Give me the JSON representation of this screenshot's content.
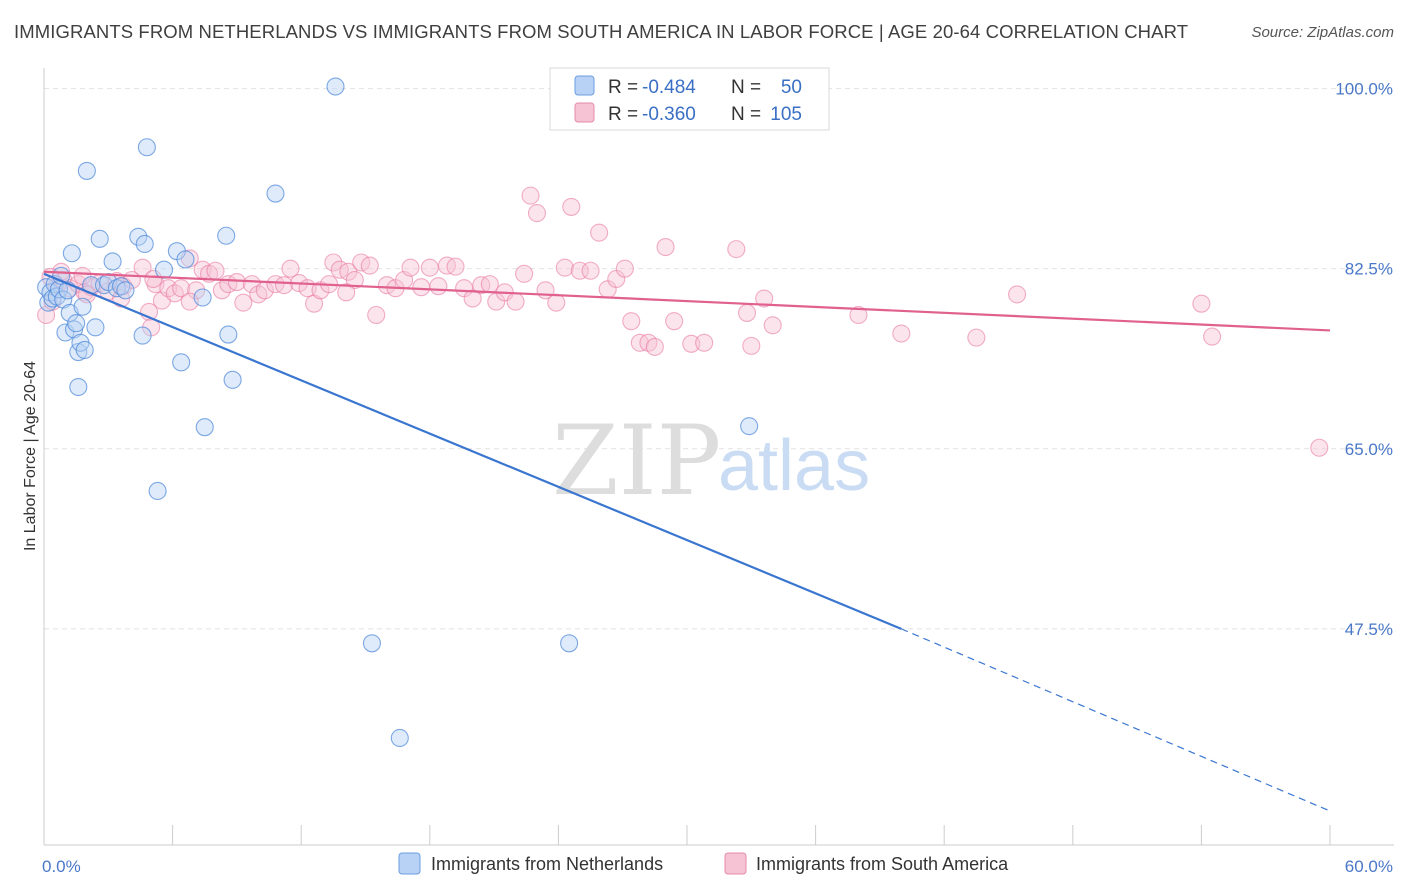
{
  "title": "IMMIGRANTS FROM NETHERLANDS VS IMMIGRANTS FROM SOUTH AMERICA IN LABOR FORCE | AGE 20-64 CORRELATION CHART",
  "source": "Source: ZipAtlas.com",
  "watermark": {
    "zip": "ZIP",
    "atlas": "atlas"
  },
  "colors": {
    "blue": "#4a86d8",
    "blue_fill": "#b7d2f4",
    "blue_line": "#3a76d0",
    "pink": "#e8709a",
    "pink_fill": "#f6c3d4",
    "pink_line": "#e0608e",
    "grid": "#e2e2e2",
    "axis_label": "#4a78c8"
  },
  "legend": {
    "row1": {
      "r_label": "R = ",
      "r_value": "-0.484",
      "n_label": "N = ",
      "n_value": "50"
    },
    "row2": {
      "r_label": "R = ",
      "r_value": "-0.360",
      "n_label": "N = ",
      "n_value": "105"
    }
  },
  "chart_data": {
    "type": "scatter",
    "xlabel": "",
    "ylabel": "In Labor Force | Age 20-64",
    "xlim": [
      0,
      60
    ],
    "ylim": [
      26.5,
      102
    ],
    "x_tick_labels": [
      {
        "value": 0,
        "label": "0.0%"
      },
      {
        "value": 60,
        "label": "60.0%"
      }
    ],
    "y_tick_labels": [
      {
        "value": 100,
        "label": "100.0%"
      },
      {
        "value": 82.5,
        "label": "82.5%"
      },
      {
        "value": 65,
        "label": "65.0%"
      },
      {
        "value": 47.5,
        "label": "47.5%"
      }
    ],
    "grid": true,
    "legend_position": "top-center",
    "series": [
      {
        "name": "Immigrants from Netherlands",
        "color": "#4a86d8",
        "trend": {
          "x1": 0,
          "y1": 82.0,
          "x2": 40.0,
          "y2": 47.5,
          "dash_to_x": 60.0,
          "dash_to_y": 29.8
        },
        "points": [
          [
            0.1,
            80.7
          ],
          [
            0.2,
            79.2
          ],
          [
            0.3,
            80.2
          ],
          [
            0.4,
            79.6
          ],
          [
            0.5,
            81.0
          ],
          [
            0.6,
            79.8
          ],
          [
            0.7,
            80.5
          ],
          [
            0.8,
            81.8
          ],
          [
            0.9,
            79.5
          ],
          [
            1.0,
            76.3
          ],
          [
            1.1,
            80.4
          ],
          [
            1.2,
            78.2
          ],
          [
            1.3,
            84.0
          ],
          [
            1.4,
            76.6
          ],
          [
            1.5,
            77.2
          ],
          [
            1.6,
            74.4
          ],
          [
            1.7,
            75.3
          ],
          [
            1.8,
            78.8
          ],
          [
            1.9,
            74.6
          ],
          [
            2.0,
            92.0
          ],
          [
            2.2,
            80.9
          ],
          [
            2.4,
            76.8
          ],
          [
            2.6,
            85.4
          ],
          [
            2.8,
            80.9
          ],
          [
            3.0,
            81.2
          ],
          [
            3.2,
            83.2
          ],
          [
            3.4,
            80.6
          ],
          [
            3.6,
            80.8
          ],
          [
            3.8,
            80.4
          ],
          [
            4.4,
            85.6
          ],
          [
            4.6,
            76.0
          ],
          [
            4.7,
            84.9
          ],
          [
            4.8,
            94.3
          ],
          [
            5.3,
            60.9
          ],
          [
            5.6,
            82.4
          ],
          [
            6.2,
            84.2
          ],
          [
            6.4,
            73.4
          ],
          [
            6.6,
            83.4
          ],
          [
            7.4,
            79.7
          ],
          [
            7.5,
            67.1
          ],
          [
            8.5,
            85.7
          ],
          [
            8.6,
            76.1
          ],
          [
            8.8,
            71.7
          ],
          [
            10.8,
            89.8
          ],
          [
            1.6,
            71.0
          ],
          [
            13.6,
            100.2
          ],
          [
            15.3,
            46.1
          ],
          [
            16.6,
            36.9
          ],
          [
            24.5,
            46.1
          ],
          [
            32.9,
            67.2
          ]
        ]
      },
      {
        "name": "Immigrants from South America",
        "color": "#e8709a",
        "trend": {
          "x1": 0,
          "y1": 82.2,
          "x2": 60.0,
          "y2": 76.5
        },
        "points": [
          [
            0.1,
            78.0
          ],
          [
            0.4,
            79.3
          ],
          [
            0.6,
            80.8
          ],
          [
            0.9,
            81.4
          ],
          [
            1.2,
            80.6
          ],
          [
            1.6,
            81.0
          ],
          [
            1.9,
            80.2
          ],
          [
            2.2,
            80.7
          ],
          [
            2.6,
            81.1
          ],
          [
            3.0,
            80.3
          ],
          [
            3.4,
            81.3
          ],
          [
            3.7,
            80.8
          ],
          [
            4.1,
            81.4
          ],
          [
            4.6,
            82.6
          ],
          [
            4.9,
            78.3
          ],
          [
            5.2,
            81.0
          ],
          [
            5.5,
            79.4
          ],
          [
            5.8,
            80.6
          ],
          [
            6.1,
            80.1
          ],
          [
            6.4,
            80.6
          ],
          [
            6.8,
            83.5
          ],
          [
            7.1,
            80.4
          ],
          [
            7.4,
            82.4
          ],
          [
            7.7,
            82.0
          ],
          [
            8.0,
            82.3
          ],
          [
            8.3,
            80.4
          ],
          [
            8.6,
            81.0
          ],
          [
            9.0,
            81.2
          ],
          [
            9.3,
            79.2
          ],
          [
            9.7,
            81.0
          ],
          [
            10.0,
            80.0
          ],
          [
            10.3,
            80.4
          ],
          [
            10.8,
            81.0
          ],
          [
            11.2,
            80.9
          ],
          [
            11.5,
            82.5
          ],
          [
            11.9,
            81.1
          ],
          [
            12.3,
            80.6
          ],
          [
            12.6,
            79.1
          ],
          [
            12.9,
            80.4
          ],
          [
            13.3,
            81.0
          ],
          [
            13.5,
            83.1
          ],
          [
            13.8,
            82.4
          ],
          [
            14.2,
            82.2
          ],
          [
            14.5,
            81.4
          ],
          [
            14.8,
            83.1
          ],
          [
            15.2,
            82.8
          ],
          [
            15.5,
            78.0
          ],
          [
            16.0,
            80.9
          ],
          [
            16.4,
            80.6
          ],
          [
            16.8,
            81.4
          ],
          [
            17.1,
            82.6
          ],
          [
            17.6,
            80.7
          ],
          [
            18.0,
            82.6
          ],
          [
            18.4,
            80.8
          ],
          [
            18.8,
            82.8
          ],
          [
            19.2,
            82.7
          ],
          [
            19.6,
            80.6
          ],
          [
            20.0,
            79.6
          ],
          [
            20.4,
            80.9
          ],
          [
            20.8,
            81.0
          ],
          [
            21.1,
            79.3
          ],
          [
            21.5,
            80.2
          ],
          [
            22.0,
            79.3
          ],
          [
            22.4,
            82.0
          ],
          [
            22.7,
            89.6
          ],
          [
            23.0,
            87.9
          ],
          [
            23.4,
            80.4
          ],
          [
            23.9,
            79.2
          ],
          [
            24.3,
            82.6
          ],
          [
            24.6,
            88.5
          ],
          [
            25.0,
            82.3
          ],
          [
            25.5,
            82.3
          ],
          [
            25.9,
            86.0
          ],
          [
            26.3,
            80.5
          ],
          [
            26.7,
            81.5
          ],
          [
            27.1,
            82.5
          ],
          [
            27.4,
            77.4
          ],
          [
            27.8,
            75.3
          ],
          [
            28.2,
            75.3
          ],
          [
            28.5,
            74.9
          ],
          [
            29.0,
            84.6
          ],
          [
            29.4,
            77.4
          ],
          [
            30.2,
            75.2
          ],
          [
            30.8,
            75.3
          ],
          [
            32.3,
            84.4
          ],
          [
            32.8,
            78.2
          ],
          [
            33.0,
            75.0
          ],
          [
            33.6,
            79.6
          ],
          [
            34.0,
            77.0
          ],
          [
            38.0,
            78.0
          ],
          [
            40.0,
            76.2
          ],
          [
            43.5,
            75.8
          ],
          [
            45.4,
            80.0
          ],
          [
            54.0,
            79.1
          ],
          [
            54.5,
            75.9
          ],
          [
            59.5,
            65.1
          ],
          [
            5.1,
            81.5
          ],
          [
            5.0,
            76.8
          ],
          [
            0.8,
            82.2
          ],
          [
            2.0,
            80.0
          ],
          [
            3.6,
            79.6
          ],
          [
            6.8,
            79.3
          ],
          [
            0.3,
            81.7
          ],
          [
            14.1,
            80.2
          ],
          [
            1.8,
            81.8
          ]
        ]
      }
    ]
  },
  "bottom_legend": {
    "item1": "Immigrants from Netherlands",
    "item2": "Immigrants from South America"
  }
}
